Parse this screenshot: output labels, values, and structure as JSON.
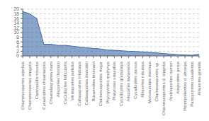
{
  "chart_data": {
    "type": "area",
    "categories": [
      "Chamesosportes aderlius",
      "Chamesosportes elegans",
      "Classopollis trouvus",
      "Cycadopites chaamarpos",
      "Chaeralaspontes hami",
      "Alisporites thomasi",
      "Cycadopres follicularis",
      "Vitreisportes pallidus",
      "Callasaportes trilobatus",
      "Callasaportes damolari",
      "Bucamnites testivanii",
      "Chamesosporites major",
      "Ptycopontes martynus",
      "Platycosio unapollos",
      "Cycadopites granulatus",
      "Alisportes lawaoseos",
      "Cycadopites parvus",
      "Alisportes robustus",
      "Monosulcites minimus",
      "Chamesaspontes sp.",
      "Chamesaspontes d. stagnus",
      "Andriaporites numeri",
      "Alisponites porus",
      "Pennipollenites d. alcoeas",
      "Parsoponites claudentis",
      "Alisportes grandis"
    ],
    "values": [
      19,
      18,
      16,
      5,
      5,
      4.5,
      4.5,
      4.2,
      3.8,
      3.5,
      3.2,
      3.0,
      2.5,
      2.4,
      2.2,
      2.0,
      1.9,
      1.7,
      1.5,
      1.3,
      1.0,
      0.8,
      0.5,
      0.4,
      0.3,
      0.7
    ],
    "color": "#3a68a8",
    "ylim": [
      0,
      20
    ],
    "yticks": [
      0,
      2,
      4,
      6,
      8,
      10,
      12,
      14,
      16,
      18,
      20
    ],
    "grid": true
  }
}
